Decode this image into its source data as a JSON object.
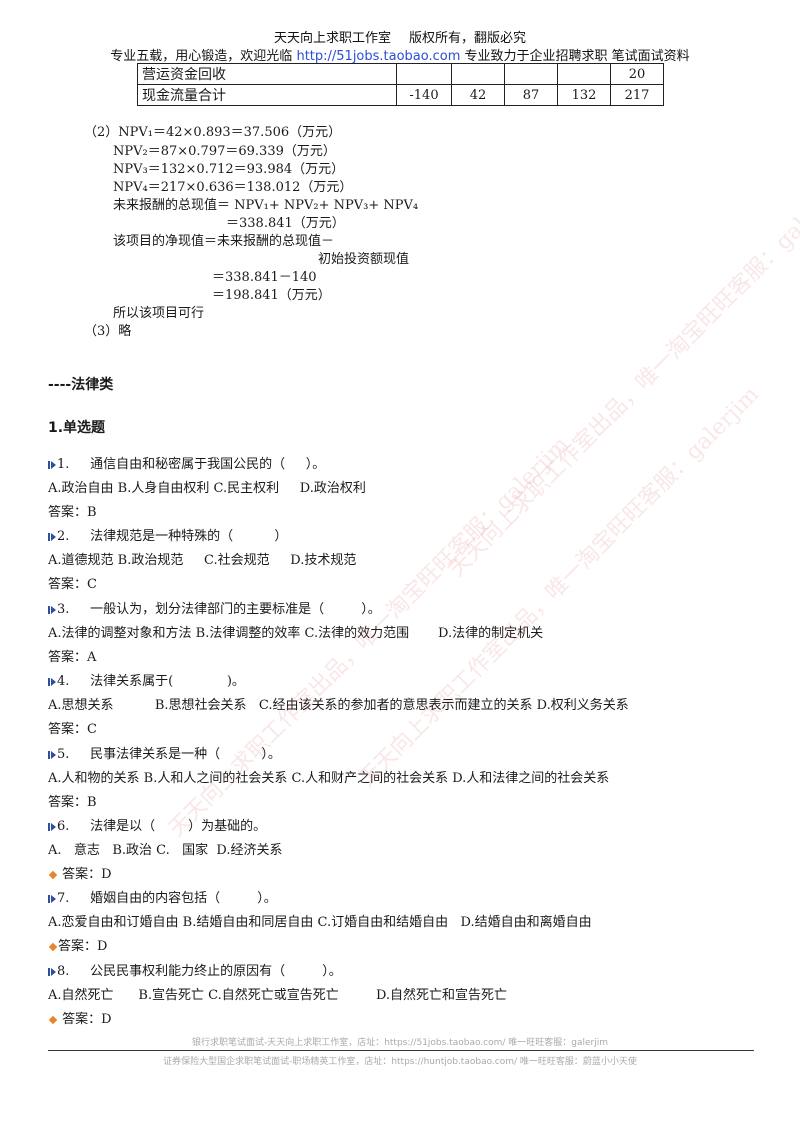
{
  "header": {
    "line1_left": "天天向上求职工作室",
    "line1_right": "版权所有，翻版必究",
    "line2_a": "专业五载，用心锻造，欢迎光临",
    "line2_link": "http://51jobs.taobao.com",
    "line2_b": "专业致力于企业招聘求职  笔试面试资料"
  },
  "table": {
    "rows": [
      {
        "label": "营运资金回收",
        "cells": [
          "",
          "",
          "",
          "",
          "20"
        ]
      },
      {
        "label": "现金流量合计",
        "cells": [
          "-140",
          "42",
          "87",
          "132",
          "217"
        ]
      }
    ]
  },
  "calc": [
    "（2）NPV₁＝42×0.893＝37.506（万元）",
    "NPV₂＝87×0.797＝69.339（万元）",
    "NPV₃＝132×0.712＝93.984（万元）",
    "NPV₄＝217×0.636＝138.012（万元）",
    "未来报酬的总现值＝ NPV₁+ NPV₂+ NPV₃+ NPV₄",
    "＝338.841（万元）",
    "该项目的净现值＝未来报酬的总现值－",
    "初始投资额现值",
    "＝338.841－140",
    "＝198.841（万元）",
    "所以该项目可行",
    "（3）略"
  ],
  "section": "----法律类",
  "subsection": "1.单选题",
  "questions": [
    {
      "q": "1.     通信自由和秘密属于我国公民的（     ）。",
      "opts": "A.政治自由 B.人身自由权利 C.民主权利     D.政治权利",
      "ans": "答案：B"
    },
    {
      "q": "2.     法律规范是一种特殊的（          ）",
      "opts": "A.道德规范 B.政治规范     C.社会规范     D.技术规范",
      "ans": "答案：C"
    },
    {
      "q": "3.     一般认为，划分法律部门的主要标准是（         ）。",
      "opts": "A.法律的调整对象和方法 B.法律调整的效率 C.法律的效力范围       D.法律的制定机关",
      "ans": "答案：A"
    },
    {
      "q": "4.     法律关系属于(             )。",
      "opts": "A.思想关系          B.思想社会关系   C.经由该关系的参加者的意思表示而建立的关系 D.权利义务关系",
      "ans": "答案：C"
    },
    {
      "q": "5.     民事法律关系是一种（          ）。",
      "opts": "A.人和物的关系 B.人和人之间的社会关系 C.人和财产之间的社会关系 D.人和法律之间的社会关系",
      "ans": "答案：B"
    },
    {
      "q": "6.     法律是以（        ）为基础的。",
      "opts": "A.   意志   B.政治 C.   国家  D.经济关系",
      "ans": "答案：D"
    },
    {
      "q": "7.     婚姻自由的内容包括（         ）。",
      "opts": "A.恋爱自由和订婚自由 B.结婚自由和同居自由 C.订婚自由和结婚自由   D.结婚自由和离婚自由",
      "ans": "答案：D"
    },
    {
      "q": "8.     公民民事权利能力终止的原因有（         ）。",
      "opts": "A.自然死亡      B.宣告死亡 C.自然死亡或宣告死亡         D.自然死亡和宣告死亡",
      "ans": "答案：D"
    }
  ],
  "footer": {
    "line1": "银行求职笔试面试-天天向上求职工作室，店址：https://51jobs.taobao.com/ 唯一旺旺客服：galerjim",
    "line2": "证券保险大型国企求职笔试面试-职场精英工作室，店址：https://huntjob.taobao.com/ 唯一旺旺客服：蔚蓝小小天使"
  },
  "watermark": "天天向上求职工作室出品，唯一淘宝旺旺客服：galerjim"
}
